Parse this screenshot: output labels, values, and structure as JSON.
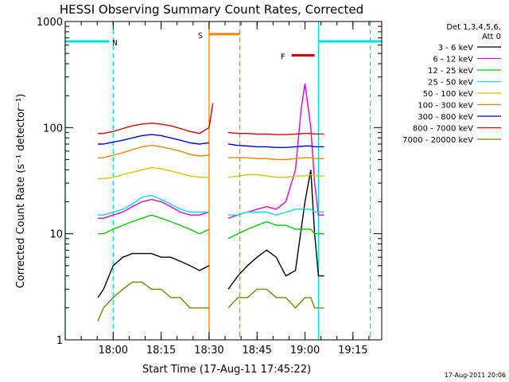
{
  "chart_data": {
    "type": "line",
    "title": "HESSI Observing Summary Count Rates, Corrected",
    "xlabel": "Start Time (17-Aug-11 17:45:22)",
    "ylabel": "Corrected Count Rate (s⁻¹ detector⁻¹)",
    "yscale": "log",
    "ylim": [
      1,
      1000
    ],
    "xlim_minutes": [
      17.75,
      19.4
    ],
    "y_ticks": [
      {
        "v": 1,
        "label": "1"
      },
      {
        "v": 10,
        "label": "10"
      },
      {
        "v": 100,
        "label": "100"
      },
      {
        "v": 1000,
        "label": "1000"
      }
    ],
    "x_ticks": [
      {
        "v": 18.0,
        "label": "18:00"
      },
      {
        "v": 18.25,
        "label": "18:15"
      },
      {
        "v": 18.5,
        "label": "18:30"
      },
      {
        "v": 18.75,
        "label": "18:45"
      },
      {
        "v": 19.0,
        "label": "19:00"
      },
      {
        "v": 19.25,
        "label": "19:15"
      }
    ],
    "legend_header": [
      "Det 1,3,4,5,6,",
      "Att 0"
    ],
    "legend_position": "right",
    "series": [
      {
        "name": "3 - 6 keV",
        "color": "#000000",
        "x": [
          17.92,
          17.95,
          18.0,
          18.05,
          18.1,
          18.15,
          18.2,
          18.25,
          18.3,
          18.35,
          18.4,
          18.45,
          18.5,
          18.57,
          18.6,
          18.65,
          18.7,
          18.75,
          18.8,
          18.85,
          18.9,
          18.95,
          19.0,
          19.03,
          19.05,
          19.07,
          19.1
        ],
        "y": [
          2.5,
          3,
          5,
          6,
          6.5,
          6.5,
          6.5,
          6,
          6,
          5.5,
          5,
          4.5,
          5,
          null,
          3,
          4,
          5,
          6,
          7,
          6,
          4,
          4.5,
          20,
          40,
          10,
          4,
          4
        ]
      },
      {
        "name": "6 - 12 keV",
        "color": "#e000e0",
        "x": [
          17.92,
          17.95,
          18.0,
          18.05,
          18.1,
          18.15,
          18.2,
          18.25,
          18.3,
          18.35,
          18.4,
          18.45,
          18.5,
          18.57,
          18.6,
          18.65,
          18.7,
          18.75,
          18.8,
          18.85,
          18.9,
          18.95,
          18.98,
          19.0,
          19.03,
          19.05,
          19.07,
          19.1
        ],
        "y": [
          14,
          14,
          15,
          16,
          18,
          20,
          21,
          20,
          18,
          16,
          15,
          15,
          16,
          null,
          14,
          15,
          16,
          17,
          18,
          17,
          20,
          40,
          150,
          260,
          100,
          30,
          15,
          15
        ]
      },
      {
        "name": "12 - 25 keV",
        "color": "#00cc00",
        "x": [
          17.92,
          17.95,
          18.0,
          18.05,
          18.1,
          18.15,
          18.2,
          18.25,
          18.3,
          18.35,
          18.4,
          18.45,
          18.5,
          18.57,
          18.6,
          18.65,
          18.7,
          18.75,
          18.8,
          18.85,
          18.9,
          18.95,
          19.0,
          19.03,
          19.05,
          19.07,
          19.1
        ],
        "y": [
          10,
          10,
          11,
          12,
          13,
          14,
          15,
          14,
          13,
          12,
          11,
          10,
          11,
          null,
          9,
          10,
          11,
          12,
          13,
          12,
          12,
          11,
          11,
          11,
          10,
          10,
          10
        ]
      },
      {
        "name": "25 - 50 keV",
        "color": "#00e0e0",
        "x": [
          17.92,
          17.95,
          18.0,
          18.05,
          18.1,
          18.15,
          18.2,
          18.25,
          18.3,
          18.35,
          18.4,
          18.45,
          18.5,
          18.57,
          18.6,
          18.65,
          18.7,
          18.75,
          18.8,
          18.85,
          18.9,
          18.95,
          19.0,
          19.03,
          19.05,
          19.07,
          19.1
        ],
        "y": [
          15,
          15,
          16,
          17,
          19,
          22,
          23,
          21,
          19,
          17,
          16,
          16,
          16,
          null,
          15,
          15,
          16,
          16,
          16,
          15,
          16,
          17,
          17,
          17,
          16,
          16,
          16
        ]
      },
      {
        "name": "50 - 100 keV",
        "color": "#d8c800",
        "x": [
          17.92,
          17.95,
          18.0,
          18.05,
          18.1,
          18.15,
          18.2,
          18.25,
          18.3,
          18.35,
          18.4,
          18.45,
          18.5,
          18.57,
          18.6,
          18.65,
          18.7,
          18.75,
          18.8,
          18.85,
          18.9,
          18.95,
          19.0,
          19.03,
          19.05,
          19.07,
          19.1
        ],
        "y": [
          33,
          33,
          34,
          36,
          38,
          40,
          42,
          41,
          39,
          37,
          35,
          34,
          34,
          null,
          34,
          35,
          36,
          36,
          35,
          34,
          34,
          35,
          35,
          36,
          35,
          35,
          35
        ]
      },
      {
        "name": "100 - 300 keV",
        "color": "#ff7f00",
        "x": [
          17.92,
          17.95,
          18.0,
          18.05,
          18.1,
          18.15,
          18.2,
          18.25,
          18.3,
          18.35,
          18.4,
          18.45,
          18.5,
          18.57,
          18.6,
          18.65,
          18.7,
          18.75,
          18.8,
          18.85,
          18.9,
          18.95,
          19.0,
          19.03,
          19.05,
          19.07,
          19.1
        ],
        "y": [
          52,
          52,
          55,
          58,
          62,
          66,
          68,
          66,
          63,
          60,
          56,
          54,
          55,
          null,
          52,
          52,
          52,
          51,
          51,
          50,
          50,
          51,
          52,
          52,
          51,
          51,
          51
        ]
      },
      {
        "name": "300 - 800 keV",
        "color": "#0000e0",
        "x": [
          17.92,
          17.95,
          18.0,
          18.05,
          18.1,
          18.15,
          18.2,
          18.25,
          18.3,
          18.35,
          18.4,
          18.45,
          18.5,
          18.57,
          18.6,
          18.65,
          18.7,
          18.75,
          18.8,
          18.85,
          18.9,
          18.95,
          19.0,
          19.03,
          19.05,
          19.07,
          19.1
        ],
        "y": [
          70,
          70,
          73,
          76,
          80,
          84,
          86,
          84,
          80,
          76,
          72,
          70,
          72,
          null,
          70,
          68,
          67,
          66,
          66,
          65,
          65,
          66,
          67,
          67,
          66,
          66,
          66
        ]
      },
      {
        "name": "800 - 7000 keV",
        "color": "#e00000",
        "x": [
          17.92,
          17.95,
          18.0,
          18.05,
          18.1,
          18.15,
          18.2,
          18.25,
          18.3,
          18.35,
          18.4,
          18.45,
          18.5,
          18.52,
          18.57,
          18.6,
          18.65,
          18.7,
          18.75,
          18.8,
          18.85,
          18.9,
          18.95,
          19.0,
          19.03,
          19.05,
          19.07,
          19.1
        ],
        "y": [
          88,
          88,
          92,
          98,
          104,
          108,
          110,
          108,
          104,
          98,
          92,
          88,
          100,
          170,
          null,
          90,
          88,
          88,
          87,
          87,
          86,
          86,
          87,
          88,
          88,
          87,
          87,
          87
        ]
      },
      {
        "name": "7000 - 20000 keV",
        "color": "#808000",
        "x": [
          17.92,
          17.95,
          18.0,
          18.05,
          18.1,
          18.15,
          18.2,
          18.25,
          18.3,
          18.35,
          18.4,
          18.45,
          18.5,
          18.57,
          18.6,
          18.65,
          18.7,
          18.75,
          18.8,
          18.85,
          18.9,
          18.95,
          19.0,
          19.03,
          19.05,
          19.07,
          19.1
        ],
        "y": [
          1.5,
          2,
          2.5,
          3,
          3.5,
          3.5,
          3,
          3,
          2.5,
          2.5,
          2,
          2,
          2,
          null,
          2,
          2.5,
          2.5,
          3,
          3,
          2.5,
          2.5,
          2,
          2.5,
          2.5,
          2,
          2,
          2
        ]
      }
    ],
    "flag_bars": [
      {
        "label": "N",
        "color": "#00e0e0",
        "x0": 17.75,
        "x1": 17.98,
        "level": 650
      },
      {
        "label": "",
        "color": "#00e0e0",
        "x0": 19.07,
        "x1": 19.4,
        "level": 650
      },
      {
        "label": "S",
        "color": "#ff7f00",
        "x0": 18.5,
        "x1": 18.66,
        "level": 760
      },
      {
        "label": "F",
        "color": "#e00000",
        "x0": 18.93,
        "x1": 19.05,
        "level": 480
      }
    ],
    "vlines": [
      {
        "x": 17.75,
        "color": "#00e0e0",
        "dashed": false
      },
      {
        "x": 18.0,
        "color": "#00e0e0",
        "dashed": true
      },
      {
        "x": 18.5,
        "color": "#ff7f00",
        "dashed": false
      },
      {
        "x": 18.66,
        "color": "#ff7f00",
        "dashed": true
      },
      {
        "x": 19.07,
        "color": "#00e0e0",
        "dashed": false
      },
      {
        "x": 19.34,
        "color": "#00e0e0",
        "dashed": true
      }
    ],
    "footer_text": "17-Aug-2011 20:06"
  }
}
